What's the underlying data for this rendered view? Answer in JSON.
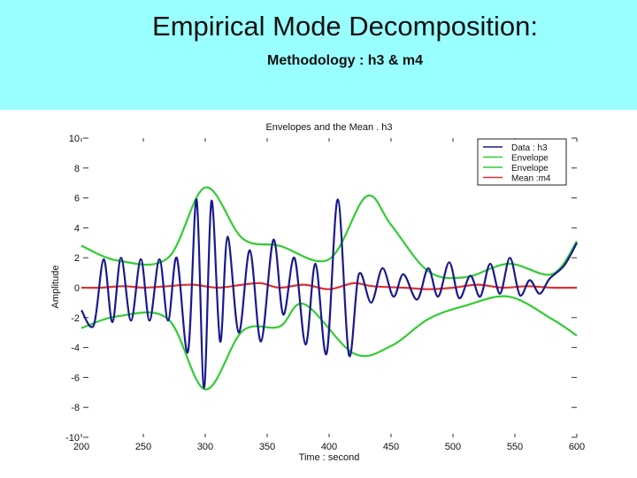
{
  "slide": {
    "title": "Empirical Mode Decomposition:",
    "subtitle": "Methodology : h3 & m4",
    "header_color": "#99ffff"
  },
  "chart_data": {
    "type": "line",
    "title": "Envelopes and the Mean . h3",
    "xlabel": "Time : second",
    "ylabel": "Amplitude",
    "xlim": [
      200,
      600
    ],
    "ylim": [
      -10,
      10
    ],
    "xticks": [
      200,
      250,
      300,
      350,
      400,
      450,
      500,
      550,
      600
    ],
    "yticks": [
      -10,
      -8,
      -6,
      -4,
      -2,
      0,
      2,
      4,
      6,
      8,
      10
    ],
    "legend_position": "top-right",
    "series": [
      {
        "name": "Data : h3",
        "color": "#1a1a8c",
        "x": [
          200,
          210,
          218,
          225,
          232,
          240,
          248,
          255,
          263,
          270,
          277,
          286,
          293,
          299,
          305,
          312,
          318,
          327,
          336,
          345,
          355,
          363,
          372,
          381,
          389,
          398,
          407,
          416,
          424,
          434,
          443,
          452,
          460,
          471,
          480,
          488,
          497,
          505,
          514,
          522,
          530,
          538,
          546,
          554,
          562,
          570,
          578,
          590,
          600
        ],
        "values": [
          -1.5,
          -2.5,
          1.9,
          -2.3,
          2.0,
          -2.2,
          1.9,
          -2.2,
          1.9,
          -2.2,
          2.0,
          -4.3,
          5.9,
          -6.7,
          5.8,
          -3.6,
          3.4,
          -3.0,
          2.5,
          -3.6,
          3.2,
          -1.8,
          2.0,
          -3.8,
          1.6,
          -4.4,
          5.9,
          -4.5,
          0.9,
          -1.0,
          1.3,
          -0.6,
          0.9,
          -0.8,
          1.3,
          -0.6,
          1.7,
          -0.7,
          0.8,
          -0.6,
          1.6,
          -0.4,
          2.0,
          -0.5,
          0.5,
          -0.4,
          0.6,
          1.5,
          3.0
        ]
      },
      {
        "name": "Envelope",
        "color": "#33cc33",
        "x": [
          200,
          230,
          270,
          300,
          330,
          360,
          400,
          430,
          450,
          480,
          510,
          545,
          580,
          600
        ],
        "values": [
          2.8,
          1.8,
          2.0,
          6.7,
          3.3,
          2.8,
          1.9,
          6.1,
          4.2,
          1.1,
          0.7,
          1.6,
          0.9,
          3.1
        ]
      },
      {
        "name": "Envelope",
        "color": "#33cc33",
        "x": [
          200,
          230,
          270,
          300,
          330,
          360,
          380,
          420,
          450,
          480,
          510,
          545,
          580,
          600
        ],
        "values": [
          -2.7,
          -1.9,
          -2.1,
          -6.8,
          -2.9,
          -2.6,
          -1.1,
          -4.4,
          -3.9,
          -2.1,
          -1.2,
          -0.6,
          -2.1,
          -3.2
        ]
      },
      {
        "name": "Mean :m4",
        "color": "#e03030",
        "x": [
          200,
          215,
          235,
          250,
          270,
          290,
          310,
          330,
          345,
          360,
          380,
          400,
          420,
          435,
          460,
          480,
          500,
          520,
          540,
          560,
          580,
          600
        ],
        "values": [
          0.0,
          0.0,
          0.1,
          0.0,
          0.1,
          0.2,
          0.0,
          0.2,
          0.3,
          0.0,
          0.2,
          -0.1,
          0.3,
          0.1,
          0.0,
          -0.1,
          0.0,
          0.2,
          0.0,
          0.1,
          0.0,
          0.0
        ]
      }
    ]
  }
}
